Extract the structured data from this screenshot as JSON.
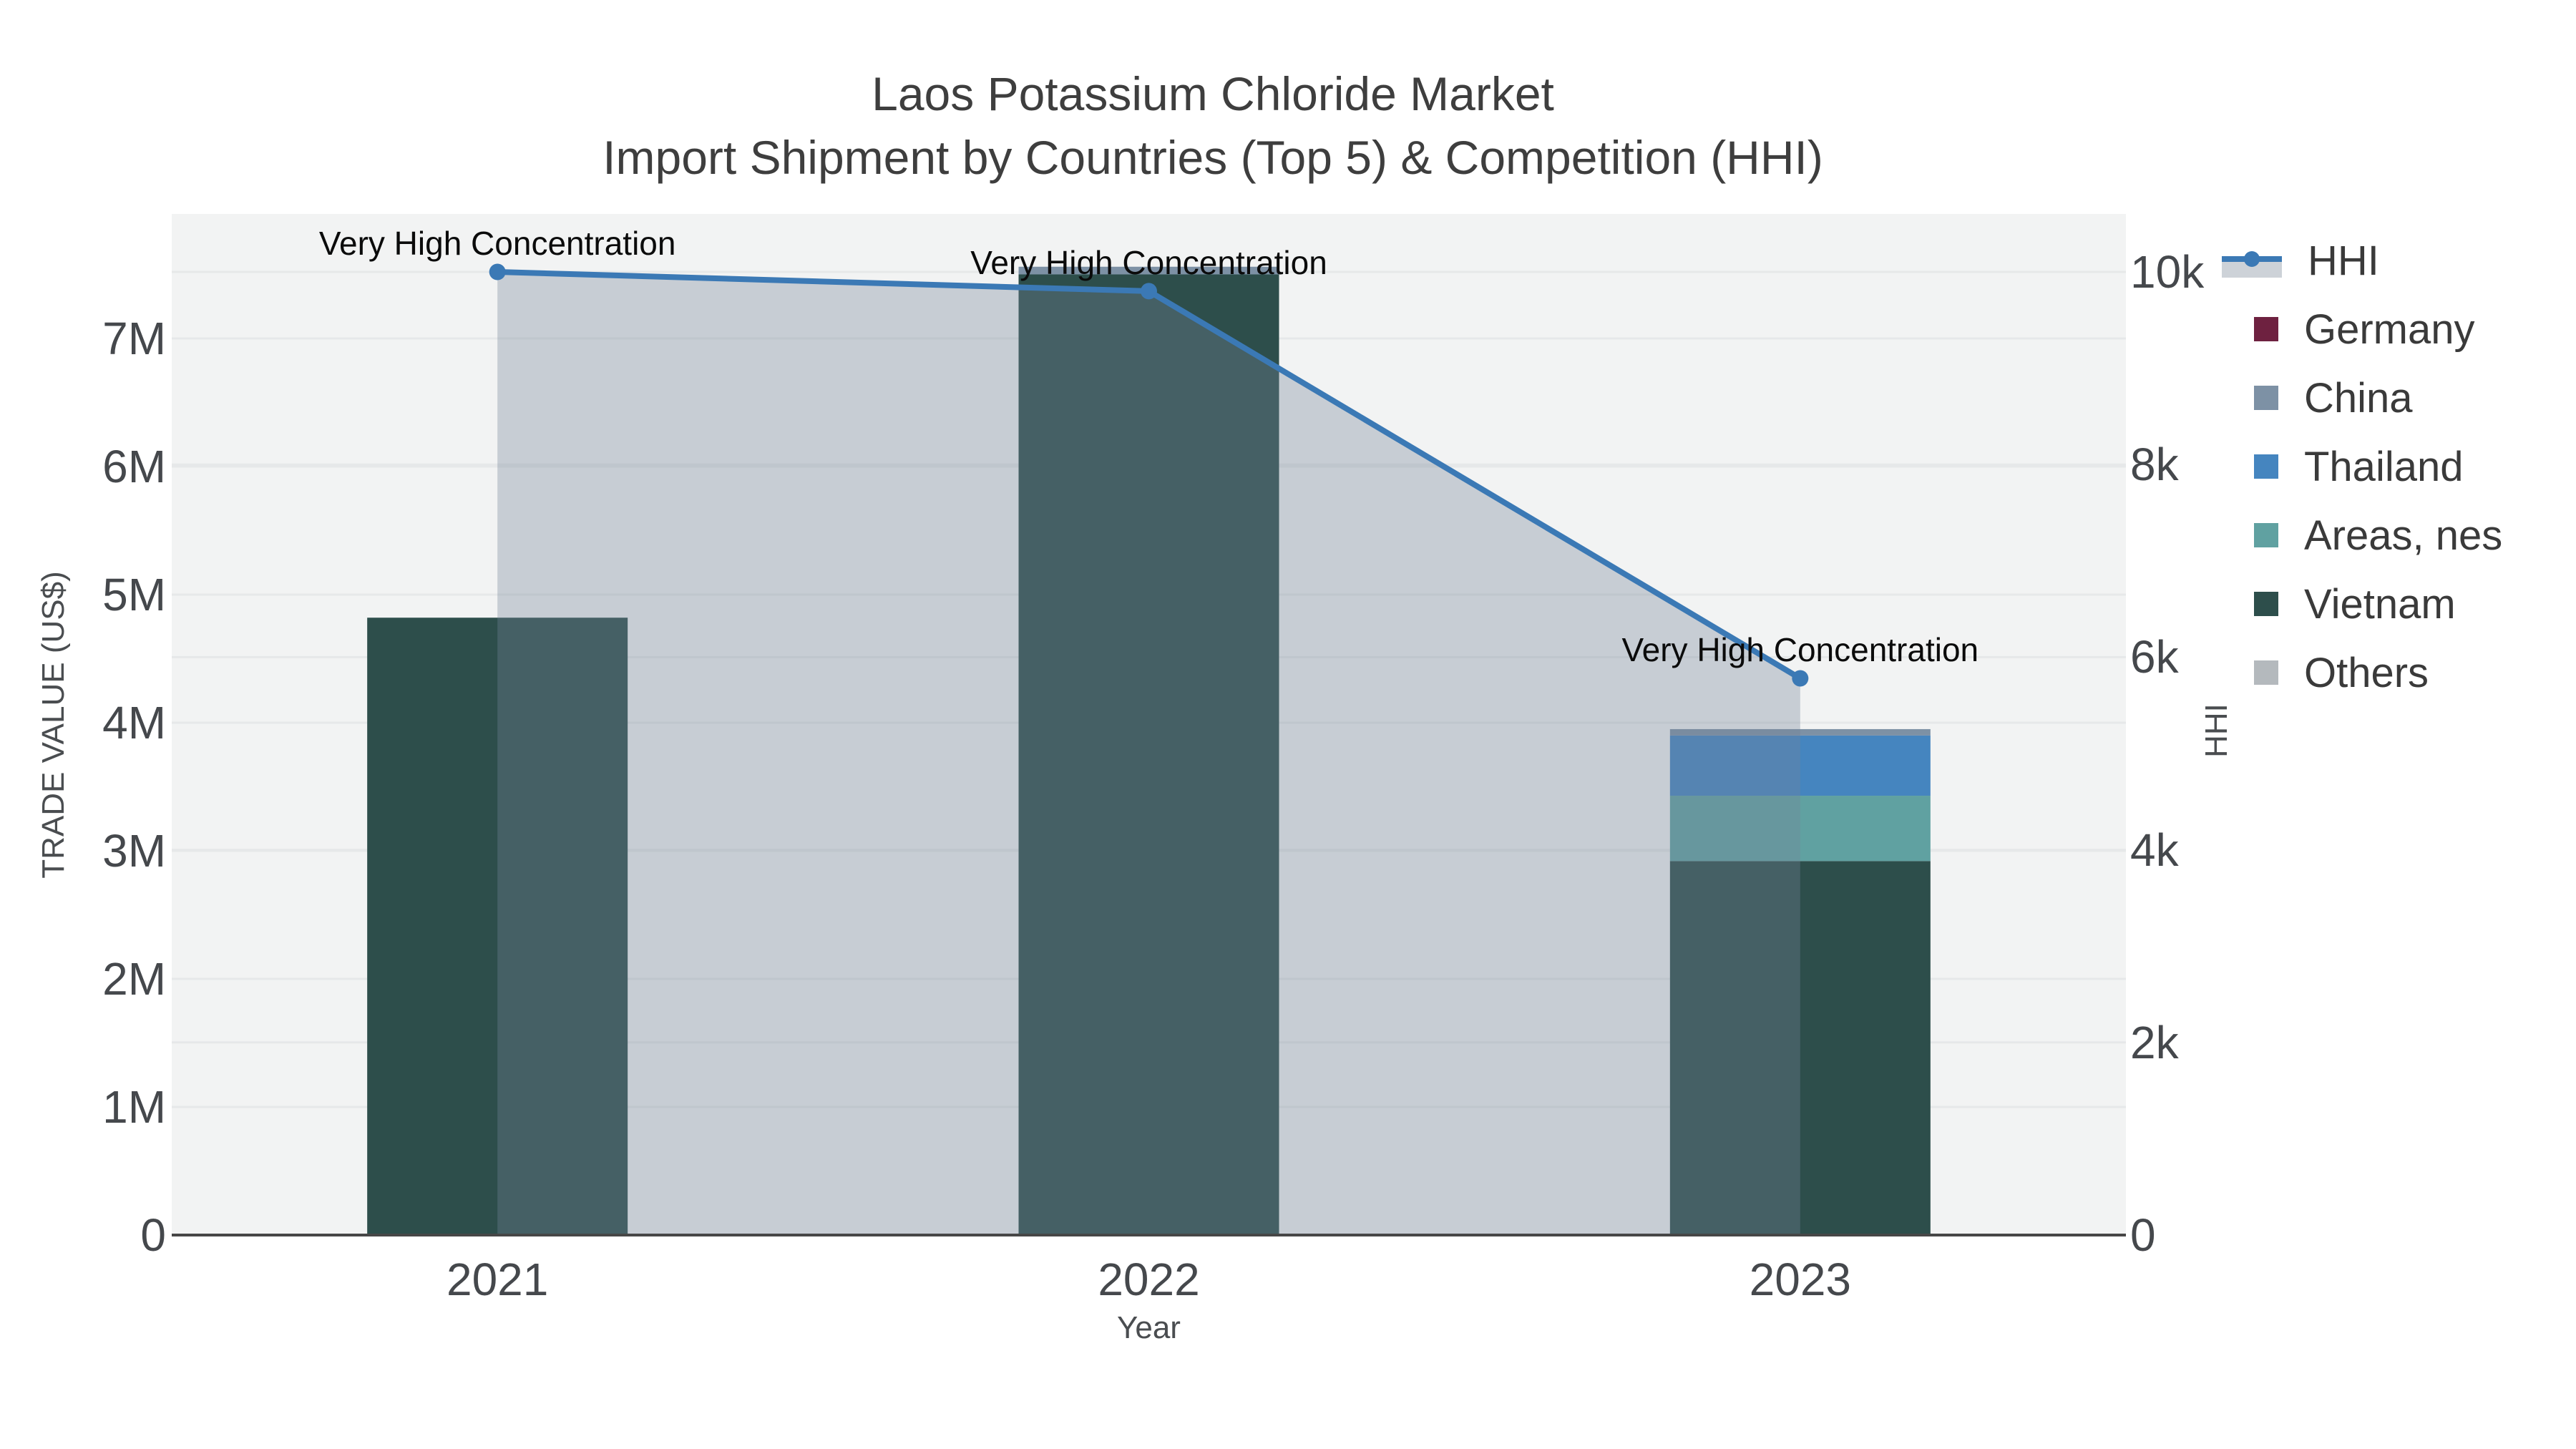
{
  "title": {
    "line1": "Laos Potassium Chloride Market",
    "line2": "Import Shipment by Countries (Top 5) & Competition (HHI)"
  },
  "colors": {
    "background": "#ffffff",
    "plot_background": "#f2f3f3",
    "gridline": "#e6e8e9",
    "axis_line": "#474747",
    "hhi_line": "#3b79b5",
    "hhi_fill": "rgba(118,132,152,0.34)",
    "tick_text": "#45484c",
    "annotation_text": "#0b0b0b"
  },
  "chart_data": {
    "type": "bar+line",
    "subtype": "stacked bars (trade value, left axis) overlaid by HHI line with shaded area (right axis)",
    "categories": [
      "2021",
      "2022",
      "2023"
    ],
    "series": [
      {
        "name": "Germany",
        "color": "#6e2140",
        "values": [
          0,
          0,
          0
        ]
      },
      {
        "name": "China",
        "color": "#7d91a5",
        "values": [
          0,
          60000,
          50000
        ]
      },
      {
        "name": "Thailand",
        "color": "#4585bf",
        "values": [
          0,
          0,
          470000
        ]
      },
      {
        "name": "Areas, nes",
        "color": "#60a1a1",
        "values": [
          0,
          0,
          510000
        ]
      },
      {
        "name": "Vietnam",
        "color": "#2d4e4b",
        "values": [
          4820000,
          7500000,
          2920000
        ]
      },
      {
        "name": "Others",
        "color": "#b4b9bd",
        "values": [
          0,
          0,
          0
        ]
      }
    ],
    "hhi_series": {
      "name": "HHI",
      "values": [
        10000,
        9800,
        5780
      ]
    },
    "annotations": [
      {
        "year": "2021",
        "text": "Very High Concentration"
      },
      {
        "year": "2022",
        "text": "Very High Concentration"
      },
      {
        "year": "2023",
        "text": "Very High Concentration"
      }
    ],
    "x_axis": {
      "title": "Year",
      "tick_labels": [
        "2021",
        "2022",
        "2023"
      ]
    },
    "y_axis_left": {
      "title": "TRADE VALUE (US$)",
      "tick_labels": [
        "0",
        "1M",
        "2M",
        "3M",
        "4M",
        "5M",
        "6M",
        "7M"
      ],
      "tick_values": [
        0,
        1000000,
        2000000,
        3000000,
        4000000,
        5000000,
        6000000,
        7000000
      ],
      "range": [
        0,
        7980000
      ],
      "grid": true
    },
    "y_axis_right": {
      "title": "HHI",
      "tick_labels": [
        "0",
        "2k",
        "4k",
        "6k",
        "8k",
        "10k"
      ],
      "tick_values": [
        0,
        2000,
        4000,
        6000,
        8000,
        10000
      ],
      "range": [
        0,
        10600
      ],
      "grid": true
    },
    "legend_position": "right"
  },
  "legend": {
    "items": [
      {
        "label": "HHI",
        "type": "line"
      },
      {
        "label": "Germany",
        "type": "bar"
      },
      {
        "label": "China",
        "type": "bar"
      },
      {
        "label": "Thailand",
        "type": "bar"
      },
      {
        "label": "Areas, nes",
        "type": "bar"
      },
      {
        "label": "Vietnam",
        "type": "bar"
      },
      {
        "label": "Others",
        "type": "bar"
      }
    ]
  }
}
